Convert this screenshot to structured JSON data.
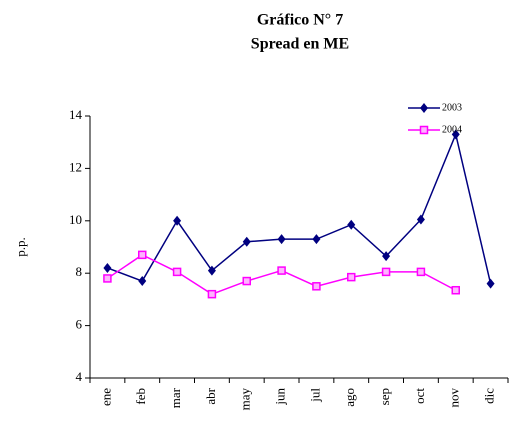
{
  "chart_data": {
    "type": "line",
    "title": "Gráfico N° 7",
    "subtitle": "Spread en ME",
    "y_label": "p.p.",
    "categories": [
      "ene",
      "feb",
      "mar",
      "abr",
      "may",
      "jun",
      "jul",
      "ago",
      "sep",
      "oct",
      "nov",
      "dic"
    ],
    "series": [
      {
        "name": "2003",
        "color": "#000080",
        "marker": "diamond",
        "values": [
          8.2,
          7.7,
          10.0,
          8.1,
          9.2,
          9.3,
          9.3,
          9.85,
          8.65,
          10.05,
          13.3,
          7.6
        ]
      },
      {
        "name": "2004",
        "color": "#ff00ff",
        "marker": "square",
        "values": [
          7.8,
          8.7,
          8.05,
          7.2,
          7.7,
          8.1,
          7.5,
          7.85,
          8.05,
          8.05,
          7.35,
          null
        ]
      }
    ],
    "ylim": [
      4,
      14
    ],
    "yticks": [
      4,
      6,
      8,
      10,
      12,
      14
    ],
    "grid": false
  }
}
